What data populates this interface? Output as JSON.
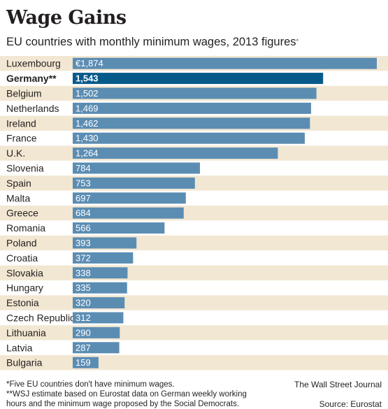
{
  "header": {
    "title": "Wage Gains",
    "subtitle": "EU countries with monthly minimum wages, 2013 figures",
    "subtitle_mark": "*"
  },
  "chart_data": {
    "type": "bar",
    "orientation": "horizontal",
    "categories": [
      "Luxembourg",
      "Germany**",
      "Belgium",
      "Netherlands",
      "Ireland",
      "France",
      "U.K.",
      "Slovenia",
      "Spain",
      "Malta",
      "Greece",
      "Romania",
      "Poland",
      "Croatia",
      "Slovakia",
      "Hungary",
      "Estonia",
      "Czech Republic",
      "Lithuania",
      "Latvia",
      "Bulgaria"
    ],
    "values": [
      1874,
      1543,
      1502,
      1469,
      1462,
      1430,
      1264,
      784,
      753,
      697,
      684,
      566,
      393,
      372,
      338,
      335,
      320,
      312,
      290,
      287,
      159
    ],
    "value_labels": [
      "€1,874",
      "1,543",
      "1,502",
      "1,469",
      "1,462",
      "1,430",
      "1,264",
      "784",
      "753",
      "697",
      "684",
      "566",
      "393",
      "372",
      "338",
      "335",
      "320",
      "312",
      "290",
      "287",
      "159"
    ],
    "highlight": "Germany**",
    "xlim": [
      0,
      1874
    ],
    "colors": {
      "bar": "#5b8db3",
      "bar_highlight": "#065a8a",
      "row_band": "#f2e7d2",
      "row_plain": "#ffffff"
    }
  },
  "footer": {
    "note1": "*Five EU countries don't have minimum wages.",
    "note2": "**WSJ estimate based on Eurostat data on German weekly working",
    "note3": "hours and the minimum wage proposed by the Social Democrats.",
    "credit": "The Wall Street Journal",
    "source": "Source: Eurostat"
  }
}
